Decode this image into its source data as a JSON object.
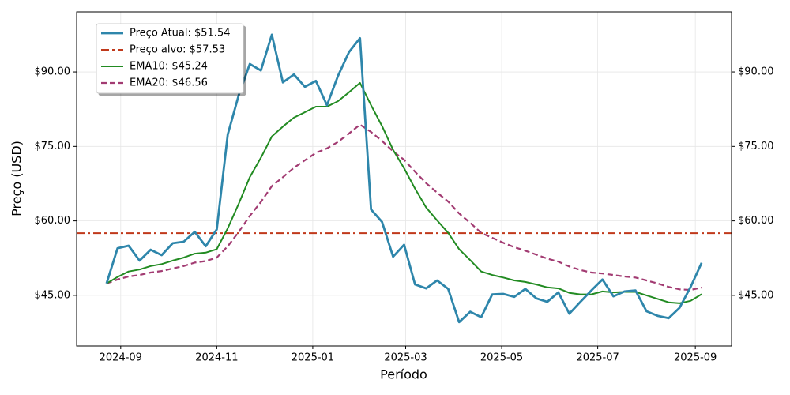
{
  "chart_data": {
    "type": "line",
    "xlabel": "Período",
    "ylabel": "Preço (USD)",
    "x": [
      "2024-08-23",
      "2024-08-30",
      "2024-09-06",
      "2024-09-13",
      "2024-09-20",
      "2024-09-27",
      "2024-10-04",
      "2024-10-11",
      "2024-10-18",
      "2024-10-25",
      "2024-11-01",
      "2024-11-08",
      "2024-11-15",
      "2024-11-22",
      "2024-11-29",
      "2024-12-06",
      "2024-12-13",
      "2024-12-20",
      "2024-12-27",
      "2025-01-03",
      "2025-01-10",
      "2025-01-17",
      "2025-01-24",
      "2025-01-31",
      "2025-02-07",
      "2025-02-14",
      "2025-02-21",
      "2025-02-28",
      "2025-03-07",
      "2025-03-14",
      "2025-03-21",
      "2025-03-28",
      "2025-04-04",
      "2025-04-11",
      "2025-04-18",
      "2025-04-25",
      "2025-05-02",
      "2025-05-09",
      "2025-05-16",
      "2025-05-23",
      "2025-05-30",
      "2025-06-06",
      "2025-06-13",
      "2025-06-20",
      "2025-06-27",
      "2025-07-04",
      "2025-07-11",
      "2025-07-18",
      "2025-07-25",
      "2025-08-01",
      "2025-08-08",
      "2025-08-15",
      "2025-08-22",
      "2025-08-29",
      "2025-09-05"
    ],
    "series": [
      {
        "name": "Preço Atual: $51.54",
        "color": "#2e86ab",
        "style": "solid",
        "width": 2.8,
        "values": [
          47.4,
          54.5,
          55.0,
          52.0,
          54.2,
          53.1,
          55.5,
          55.8,
          57.8,
          54.9,
          58.3,
          77.4,
          85.4,
          91.6,
          90.3,
          97.5,
          87.9,
          89.5,
          87.0,
          88.2,
          83.3,
          89.2,
          94.0,
          96.8,
          62.3,
          59.8,
          52.8,
          55.2,
          47.2,
          46.4,
          48.0,
          46.3,
          39.6,
          41.7,
          40.6,
          45.2,
          45.3,
          44.7,
          46.3,
          44.4,
          43.7,
          45.6,
          41.3,
          43.7,
          46.0,
          48.2,
          44.8,
          45.8,
          46.0,
          41.8,
          40.9,
          40.4,
          42.5,
          46.7,
          51.54
        ]
      },
      {
        "name": "EMA10: $45.24",
        "color": "#228b22",
        "style": "solid",
        "width": 2,
        "values": [
          47.4,
          48.7,
          49.8,
          50.2,
          50.9,
          51.3,
          52.0,
          52.6,
          53.4,
          53.6,
          54.3,
          58.5,
          63.5,
          68.8,
          72.7,
          77.0,
          79.0,
          80.8,
          81.9,
          83.0,
          83.0,
          84.1,
          85.9,
          87.8,
          83.3,
          79.1,
          74.3,
          70.6,
          66.5,
          62.7,
          60.1,
          57.6,
          54.3,
          52.1,
          49.8,
          49.1,
          48.6,
          48.0,
          47.7,
          47.2,
          46.6,
          46.4,
          45.5,
          45.2,
          45.2,
          45.8,
          45.6,
          45.7,
          45.7,
          45.0,
          44.3,
          43.6,
          43.4,
          43.9,
          45.24
        ]
      },
      {
        "name": "EMA20: $46.56",
        "color": "#a23b72",
        "style": "dashed",
        "width": 2.2,
        "values": [
          47.4,
          48.2,
          48.8,
          49.1,
          49.6,
          49.9,
          50.4,
          50.9,
          51.6,
          51.9,
          52.6,
          54.9,
          57.8,
          61.0,
          63.8,
          67.0,
          68.8,
          70.7,
          72.2,
          73.7,
          74.6,
          75.9,
          77.6,
          79.4,
          77.9,
          76.1,
          74.0,
          72.3,
          69.9,
          67.6,
          65.7,
          63.9,
          61.5,
          59.6,
          57.6,
          56.6,
          55.6,
          54.7,
          54.0,
          53.2,
          52.4,
          51.8,
          50.8,
          50.1,
          49.6,
          49.4,
          49.1,
          48.8,
          48.6,
          48.0,
          47.4,
          46.7,
          46.2,
          46.1,
          46.56
        ]
      }
    ],
    "target": {
      "name": "Preço alvo: $57.53",
      "value": 57.53,
      "color": "#c0391b",
      "style": "dashdot"
    },
    "xlim": [
      "2024-08-04",
      "2025-09-24"
    ],
    "xticks": [
      {
        "value": "2024-09-01",
        "label": "2024-09"
      },
      {
        "value": "2024-11-01",
        "label": "2024-11"
      },
      {
        "value": "2025-01-01",
        "label": "2025-01"
      },
      {
        "value": "2025-03-01",
        "label": "2025-03"
      },
      {
        "value": "2025-05-01",
        "label": "2025-05"
      },
      {
        "value": "2025-07-01",
        "label": "2025-07"
      },
      {
        "value": "2025-09-01",
        "label": "2025-09"
      }
    ],
    "ylim": [
      34.8,
      102.1
    ],
    "yticks": [
      {
        "value": 45,
        "label": "$45.00"
      },
      {
        "value": 60,
        "label": "$60.00"
      },
      {
        "value": 75,
        "label": "$75.00"
      },
      {
        "value": 90,
        "label": "$90.00"
      }
    ],
    "grid": true,
    "legend": "upper left",
    "right_axis": true
  }
}
